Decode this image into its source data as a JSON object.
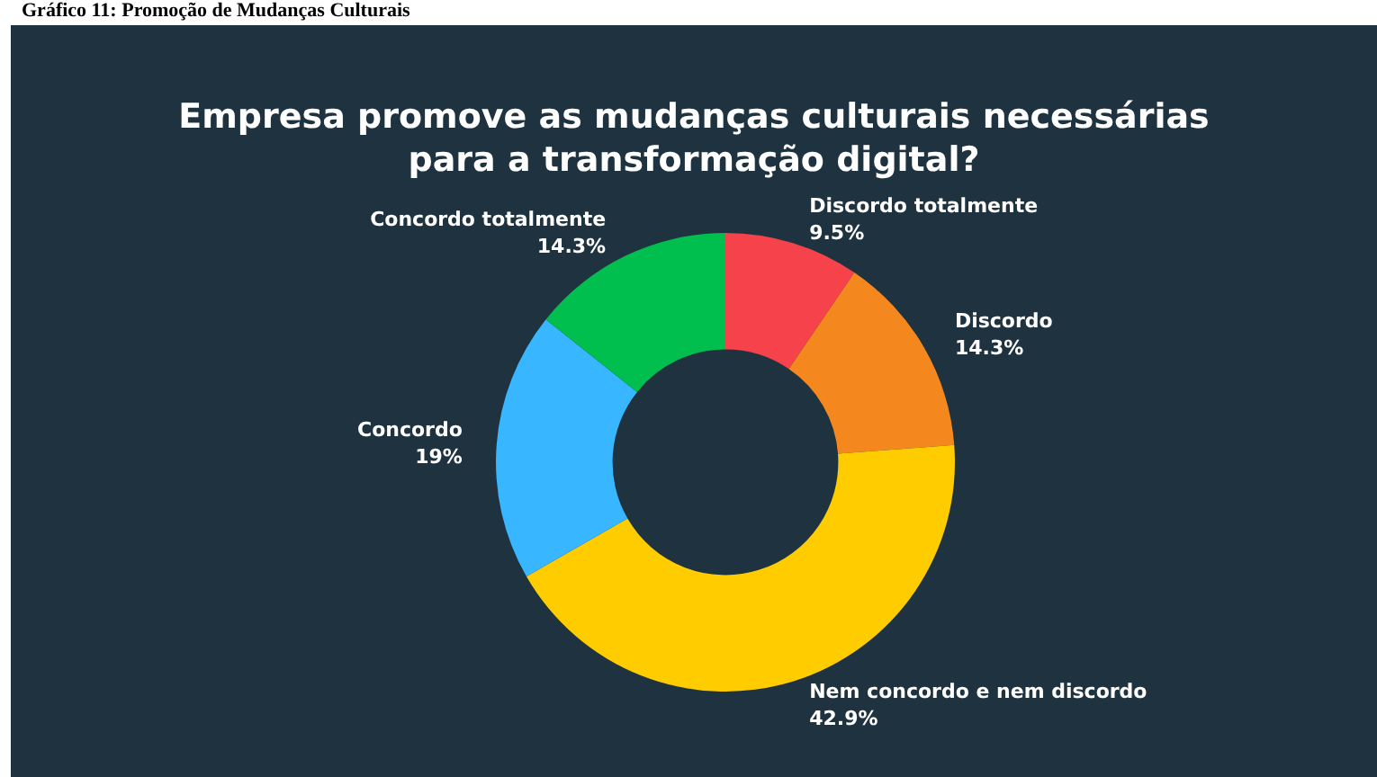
{
  "chart_data": {
    "type": "donut",
    "title": "Empresa promove as mudanças culturais necessárias\npara a transformação digital?",
    "annotations": [
      "Gráfico 11: Promoção de Mudanças Culturais"
    ],
    "categories": [
      "Discordo totalmente",
      "Discordo",
      "Nem concordo e nem discordo",
      "Concordo",
      "Concordo totalmente"
    ],
    "values": [
      9.5,
      14.3,
      42.9,
      19,
      14.3
    ],
    "value_labels": [
      "9.5%",
      "14.3%",
      "42.9%",
      "19%",
      "14.3%"
    ],
    "colors": [
      "#f5424b",
      "#f5871f",
      "#ffcc00",
      "#38b6ff",
      "#00bf4f"
    ]
  }
}
